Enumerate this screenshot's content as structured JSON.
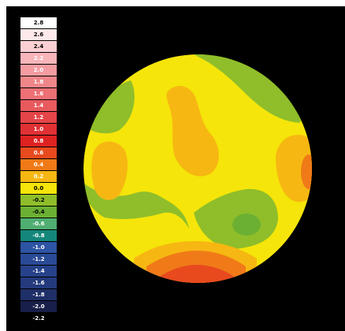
{
  "legend": [
    {
      "label": "2.8",
      "color": "#ffffff",
      "text": "#000000"
    },
    {
      "label": "2.6",
      "color": "#fde8ea",
      "text": "#000000"
    },
    {
      "label": "2.4",
      "color": "#fbd0d4",
      "text": "#000000"
    },
    {
      "label": "2.2",
      "color": "#f8b5ba",
      "text": "#ffffff"
    },
    {
      "label": "2.0",
      "color": "#f49ca1",
      "text": "#ffffff"
    },
    {
      "label": "1.8",
      "color": "#f0868a",
      "text": "#ffffff"
    },
    {
      "label": "1.6",
      "color": "#ec7075",
      "text": "#ffffff"
    },
    {
      "label": "1.4",
      "color": "#e85a5e",
      "text": "#ffffff"
    },
    {
      "label": "1.2",
      "color": "#e44548",
      "text": "#ffffff"
    },
    {
      "label": "1.0",
      "color": "#e03134",
      "text": "#ffffff"
    },
    {
      "label": "0.8",
      "color": "#dd2222",
      "text": "#ffffff"
    },
    {
      "label": "0.6",
      "color": "#e84a1e",
      "text": "#ffffff"
    },
    {
      "label": "0.4",
      "color": "#f07a18",
      "text": "#ffffff"
    },
    {
      "label": "0.2",
      "color": "#f7b712",
      "text": "#ffffff"
    },
    {
      "label": "0.0",
      "color": "#f5e50a",
      "text": "#000000"
    },
    {
      "label": "-0.2",
      "color": "#8fbe2a",
      "text": "#000000"
    },
    {
      "label": "-0.4",
      "color": "#6cb033",
      "text": "#000000"
    },
    {
      "label": "-0.6",
      "color": "#4fae72",
      "text": "#ffffff"
    },
    {
      "label": "-0.8",
      "color": "#14877a",
      "text": "#ffffff"
    },
    {
      "label": "-1.0",
      "color": "#2e54a4",
      "text": "#ffffff"
    },
    {
      "label": "-1.2",
      "color": "#2a4a96",
      "text": "#ffffff"
    },
    {
      "label": "-1.4",
      "color": "#27428a",
      "text": "#ffffff"
    },
    {
      "label": "-1.6",
      "color": "#243a7c",
      "text": "#ffffff"
    },
    {
      "label": "-1.8",
      "color": "#1f2f68",
      "text": "#ffffff"
    },
    {
      "label": "-2.0",
      "color": "#181f48",
      "text": "#ffffff"
    },
    {
      "label": "-2.2",
      "color": "#000000",
      "text": "#ffffff"
    }
  ],
  "map_colors": {
    "base": "#f5e50a",
    "green_light": "#8fbe2a",
    "green_dark": "#6cb033",
    "orange_light": "#f7b712",
    "orange": "#f07a18",
    "red": "#e84a1e",
    "deep_red": "#dd2222"
  }
}
